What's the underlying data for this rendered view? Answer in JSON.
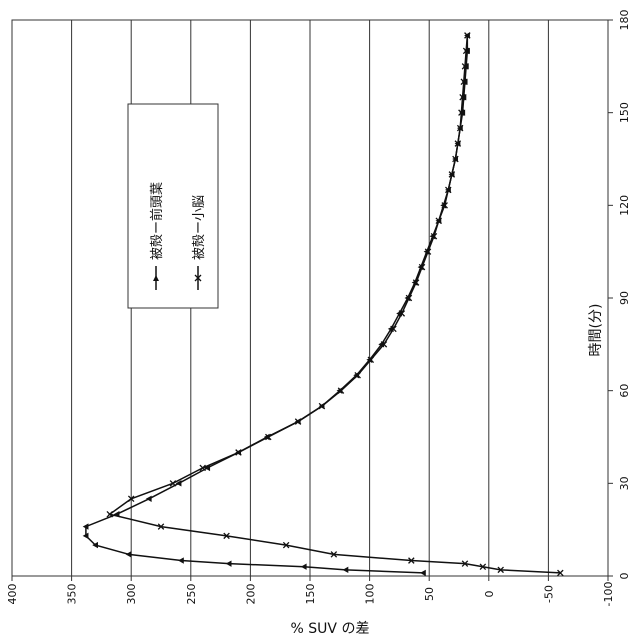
{
  "chart_data": {
    "type": "line",
    "title": "",
    "xlabel": "時間(分)",
    "ylabel": "% SUV の差",
    "xlim": [
      0,
      180
    ],
    "ylim": [
      -100,
      400
    ],
    "x_ticks": [
      0,
      30,
      60,
      90,
      120,
      150,
      180
    ],
    "y_ticks": [
      400,
      350,
      300,
      250,
      200,
      150,
      100,
      50,
      0,
      -50,
      -100
    ],
    "grid": "horizontal lines at y-ticks",
    "legend_position": "upper-middle",
    "orientation": "rotated 90° counter-clockwise",
    "series": [
      {
        "name": "被殻ー前頭葉",
        "marker": "triangle",
        "x": [
          1,
          2,
          3,
          4,
          5,
          7,
          10,
          13,
          16,
          20,
          25,
          30,
          35,
          40,
          45,
          50,
          55,
          60,
          65,
          70,
          75,
          80,
          85,
          90,
          95,
          100,
          105,
          110,
          115,
          120,
          125,
          130,
          135,
          140,
          145,
          150,
          155,
          160,
          165,
          170,
          175
        ],
        "y": [
          55,
          120,
          155,
          218,
          258,
          302,
          330,
          338,
          338,
          312,
          285,
          260,
          236,
          210,
          186,
          160,
          140,
          125,
          111,
          100,
          90,
          82,
          75,
          68,
          62,
          57,
          52,
          47,
          42,
          38,
          34,
          31,
          28,
          26,
          24,
          22,
          21,
          20,
          19,
          18,
          18
        ]
      },
      {
        "name": "被殻ー小脳",
        "marker": "x",
        "x": [
          1,
          2,
          3,
          4,
          5,
          7,
          10,
          13,
          16,
          20,
          25,
          30,
          35,
          40,
          45,
          50,
          55,
          60,
          65,
          70,
          75,
          80,
          85,
          90,
          95,
          100,
          105,
          110,
          115,
          120,
          125,
          130,
          135,
          140,
          145,
          150,
          155,
          160,
          165,
          170,
          175
        ],
        "y": [
          -60,
          -10,
          5,
          20,
          65,
          130,
          170,
          220,
          275,
          318,
          300,
          265,
          240,
          210,
          185,
          160,
          140,
          124,
          110,
          99,
          88,
          80,
          73,
          67,
          61,
          56,
          51,
          46,
          42,
          37,
          34,
          31,
          28,
          26,
          24,
          23,
          22,
          21,
          20,
          19,
          18
        ]
      }
    ]
  },
  "colors": {
    "line": "#111111",
    "grid": "#333333",
    "background": "#ffffff"
  }
}
